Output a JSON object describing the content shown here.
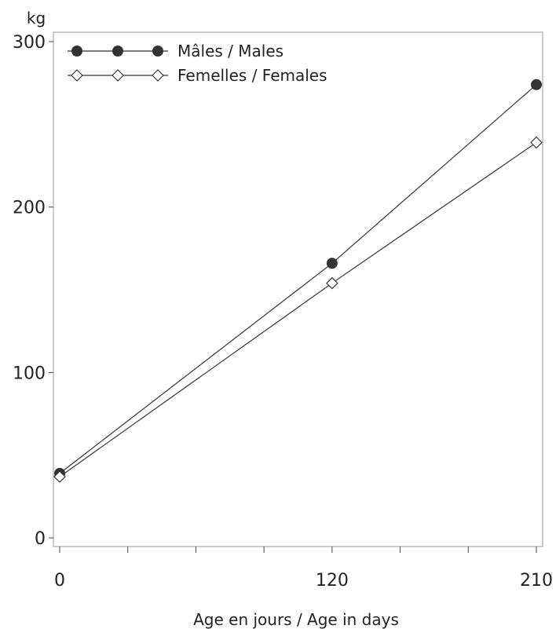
{
  "chart_data": {
    "type": "line",
    "xlabel": "Age en jours / Age in days",
    "ylabel": "kg",
    "x": [
      0,
      120,
      210
    ],
    "x_tick_labels": [
      "0",
      "120",
      "210"
    ],
    "x_minor_ticks": [
      30,
      60,
      90,
      150,
      180
    ],
    "xlim": [
      0,
      210
    ],
    "ylim": [
      0,
      300
    ],
    "y_ticks": [
      0,
      100,
      200,
      300
    ],
    "y_tick_labels": [
      "0",
      "100",
      "200",
      "300"
    ],
    "grid": false,
    "legend_position": "top-left",
    "series": [
      {
        "name": "Mâles / Males",
        "marker": "filled-circle",
        "values": [
          39,
          166,
          274
        ]
      },
      {
        "name": "Femelles / Females",
        "marker": "open-diamond",
        "values": [
          37,
          154,
          239
        ]
      }
    ]
  }
}
